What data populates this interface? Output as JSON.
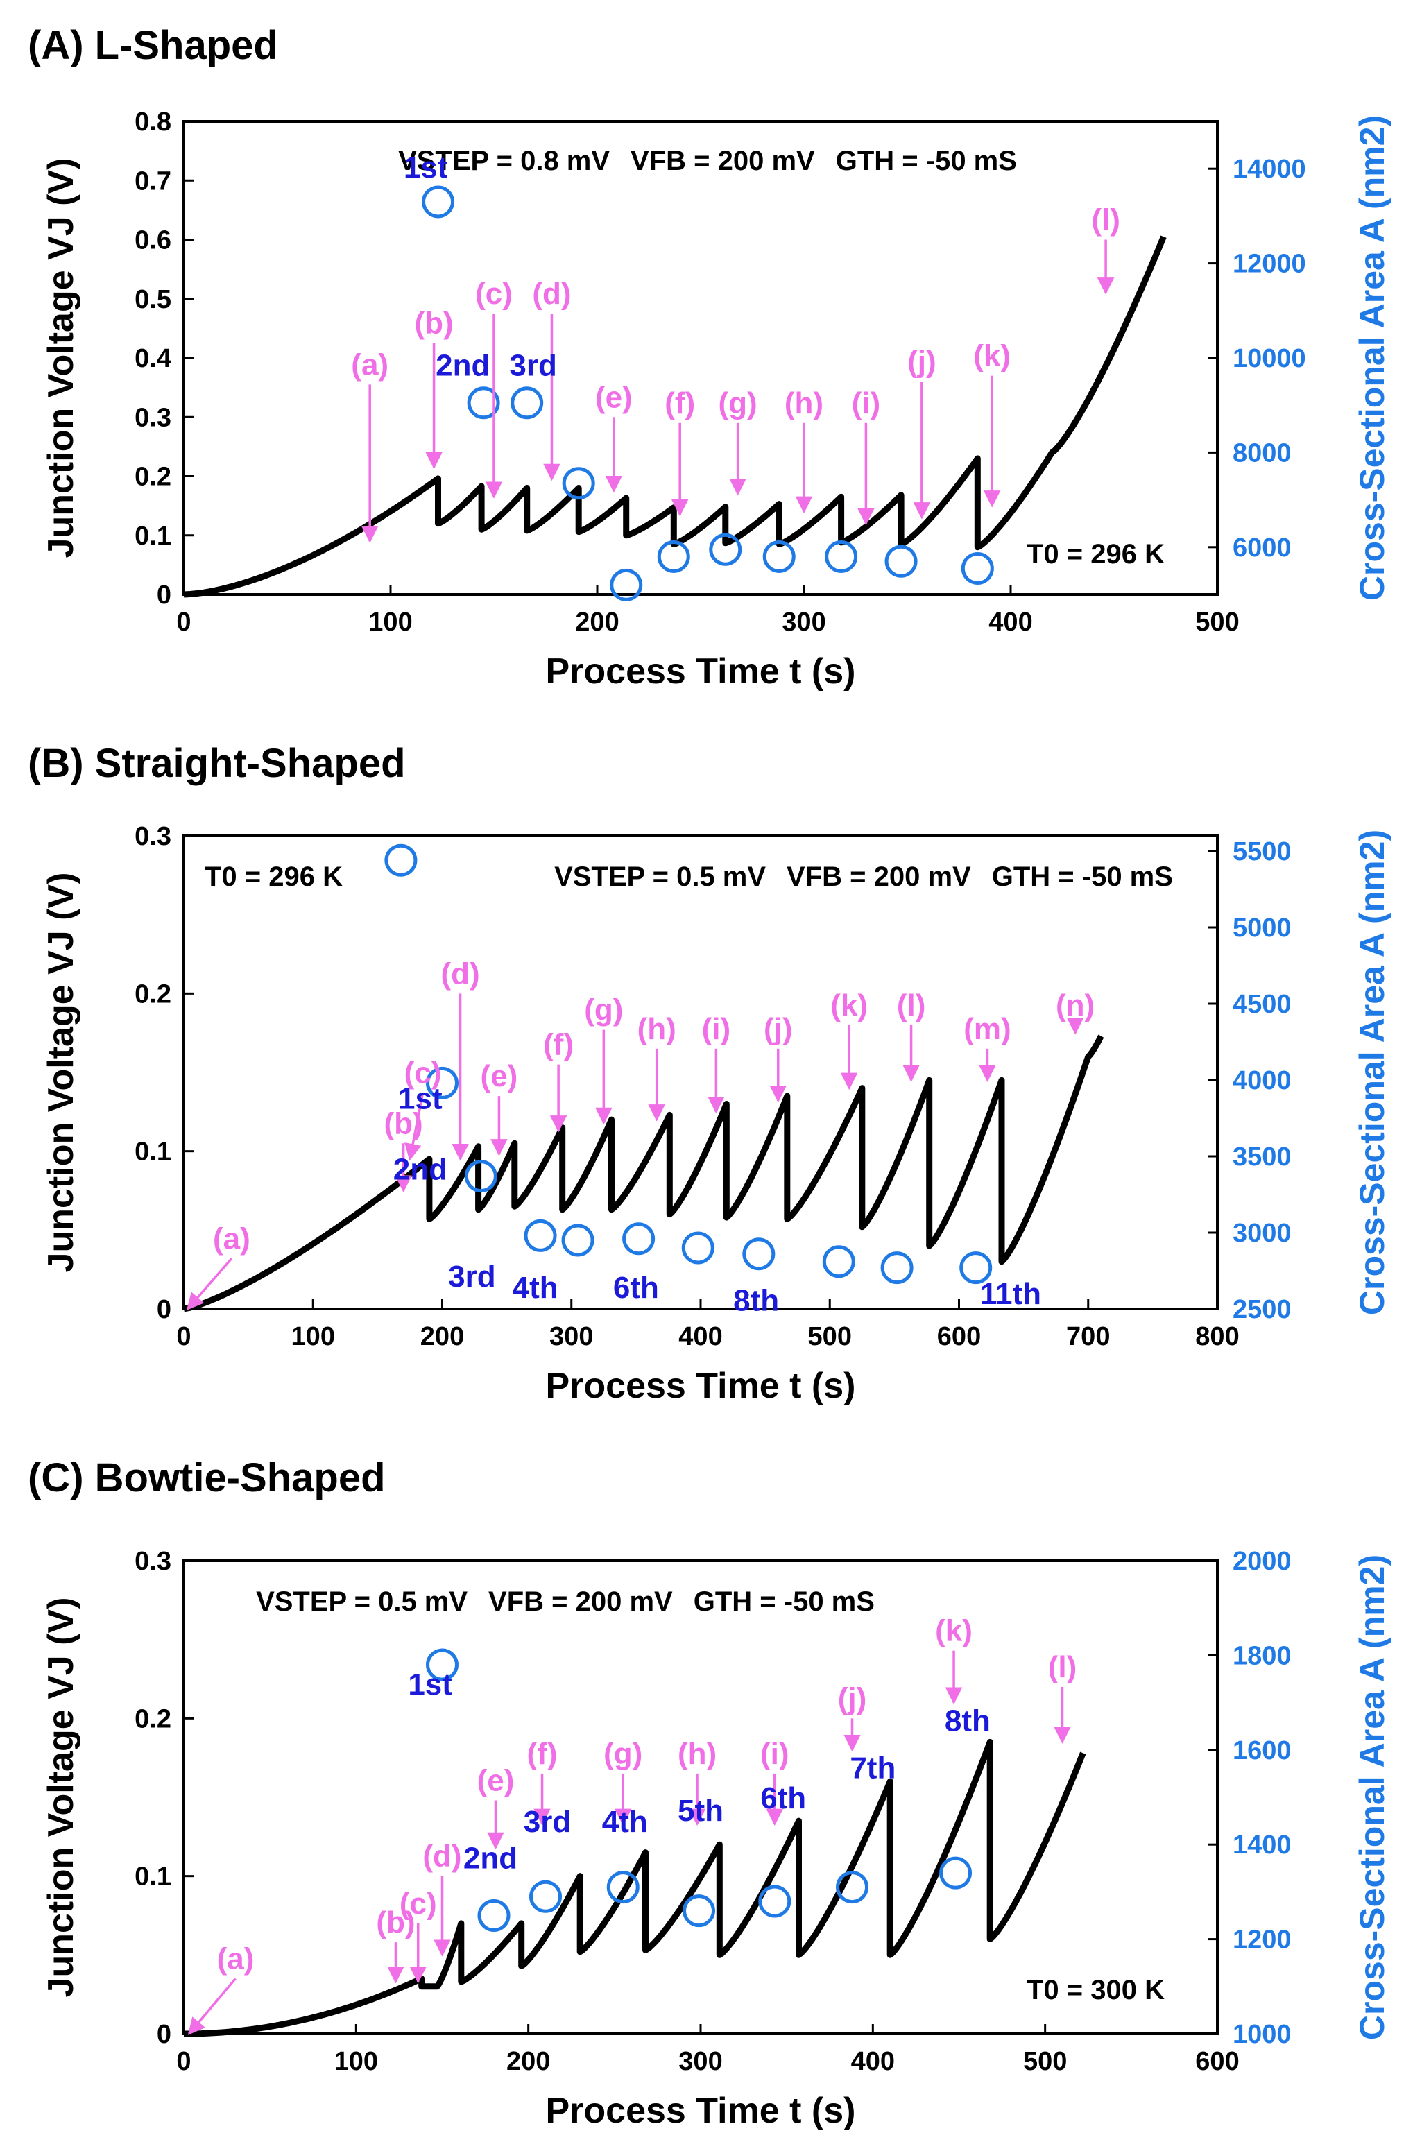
{
  "colors": {
    "curve": "#000000",
    "marker": "#1f7ae6",
    "arrow": "#f06ee6",
    "event": "#1a1ad8",
    "right_axis": "#1f7ae6"
  },
  "chart_data": [
    {
      "type": "line",
      "panel": "(A) L-Shaped",
      "xlabel": "Process Time t (s)",
      "ylabel": "Junction Voltage VJ (V)",
      "y2label": "Cross-Sectional Area A (nm2)",
      "xlim": [
        0,
        500
      ],
      "ylim": [
        0,
        0.8
      ],
      "y2lim": [
        5000,
        15000
      ],
      "xticks": [
        0,
        100,
        200,
        300,
        400,
        500
      ],
      "yticks": [
        0,
        0.1,
        0.2,
        0.3,
        0.4,
        0.5,
        0.6,
        0.7,
        0.8
      ],
      "y2ticks": [
        6000,
        8000,
        10000,
        12000,
        14000
      ],
      "params": {
        "vstep": "VSTEP = 0.8 mV",
        "vfb": "VFB = 200 mV",
        "gth": "GTH = -50 mS"
      },
      "temperature": "T0 = 296 K",
      "ramp_exp": 1.6,
      "segments": [
        {
          "t0": 0,
          "v0": 0.0,
          "t1": 123,
          "v1": 0.196
        },
        {
          "t0": 123,
          "v0": 0.12,
          "t1": 144,
          "v1": 0.183
        },
        {
          "t0": 144,
          "v0": 0.11,
          "t1": 166,
          "v1": 0.18
        },
        {
          "t0": 166,
          "v0": 0.108,
          "t1": 191,
          "v1": 0.18
        },
        {
          "t0": 191,
          "v0": 0.106,
          "t1": 214,
          "v1": 0.163
        },
        {
          "t0": 214,
          "v0": 0.1,
          "t1": 237,
          "v1": 0.147
        },
        {
          "t0": 237,
          "v0": 0.085,
          "t1": 262,
          "v1": 0.148
        },
        {
          "t0": 262,
          "v0": 0.087,
          "t1": 288,
          "v1": 0.153
        },
        {
          "t0": 288,
          "v0": 0.085,
          "t1": 318,
          "v1": 0.165
        },
        {
          "t0": 318,
          "v0": 0.088,
          "t1": 347,
          "v1": 0.168
        },
        {
          "t0": 347,
          "v0": 0.085,
          "t1": 384,
          "v1": 0.23
        },
        {
          "t0": 384,
          "v0": 0.08,
          "t1": 420,
          "v1": 0.24
        },
        {
          "t0": 420,
          "v0": 0.24,
          "t1": 474,
          "v1": 0.605
        }
      ],
      "markers": [
        {
          "t": 123,
          "a": 13300
        },
        {
          "t": 145,
          "a": 9050
        },
        {
          "t": 166,
          "a": 9050
        },
        {
          "t": 191,
          "a": 7350
        },
        {
          "t": 214,
          "a": 5200
        },
        {
          "t": 237,
          "a": 5800
        },
        {
          "t": 262,
          "a": 5950
        },
        {
          "t": 288,
          "a": 5800
        },
        {
          "t": 318,
          "a": 5800
        },
        {
          "t": 347,
          "a": 5700
        },
        {
          "t": 384,
          "a": 5550
        }
      ],
      "arrows": [
        {
          "label": "(a)",
          "t": 90,
          "v_top": 0.355,
          "v_end": 0.09
        },
        {
          "label": "(b)",
          "t": 121,
          "v_top": 0.425,
          "v_end": 0.215
        },
        {
          "label": "(c)",
          "t": 150,
          "v_top": 0.475,
          "v_end": 0.165
        },
        {
          "label": "(d)",
          "t": 178,
          "v_top": 0.475,
          "v_end": 0.195
        },
        {
          "label": "(e)",
          "t": 208,
          "v_top": 0.3,
          "v_end": 0.175
        },
        {
          "label": "(f)",
          "t": 240,
          "v_top": 0.29,
          "v_end": 0.135
        },
        {
          "label": "(g)",
          "t": 268,
          "v_top": 0.29,
          "v_end": 0.17
        },
        {
          "label": "(h)",
          "t": 300,
          "v_top": 0.29,
          "v_end": 0.14
        },
        {
          "label": "(i)",
          "t": 330,
          "v_top": 0.29,
          "v_end": 0.12
        },
        {
          "label": "(j)",
          "t": 357,
          "v_top": 0.36,
          "v_end": 0.13
        },
        {
          "label": "(k)",
          "t": 391,
          "v_top": 0.37,
          "v_end": 0.15
        },
        {
          "label": "(l)",
          "t": 446,
          "v_top": 0.6,
          "v_end": 0.51
        }
      ],
      "labels": [
        {
          "text": "1st",
          "t": 117,
          "v": 0.705
        },
        {
          "text": "2nd",
          "t": 135,
          "v": 0.37
        },
        {
          "text": "3rd",
          "t": 169,
          "v": 0.37
        }
      ]
    },
    {
      "type": "line",
      "panel": "(B) Straight-Shaped",
      "xlabel": "Process Time t (s)",
      "ylabel": "Junction Voltage VJ (V)",
      "y2label": "Cross-Sectional Area A (nm2)",
      "xlim": [
        0,
        800
      ],
      "ylim": [
        0,
        0.3
      ],
      "y2lim": [
        2500,
        5600
      ],
      "xticks": [
        0,
        100,
        200,
        300,
        400,
        500,
        600,
        700,
        800
      ],
      "yticks": [
        0,
        0.1,
        0.2,
        0.3
      ],
      "y2ticks": [
        2500,
        3000,
        3500,
        4000,
        4500,
        5000,
        5500
      ],
      "params": {
        "vstep": "VSTEP = 0.5 mV",
        "vfb": "VFB = 200 mV",
        "gth": "GTH = -50 mS"
      },
      "temperature": "T0 = 296 K",
      "ramp_exp": 1.3,
      "segments": [
        {
          "t0": 0,
          "v0": 0.0,
          "t1": 190,
          "v1": 0.095
        },
        {
          "t0": 190,
          "v0": 0.057,
          "t1": 228,
          "v1": 0.103
        },
        {
          "t0": 228,
          "v0": 0.063,
          "t1": 256,
          "v1": 0.105
        },
        {
          "t0": 256,
          "v0": 0.065,
          "t1": 293,
          "v1": 0.115
        },
        {
          "t0": 293,
          "v0": 0.063,
          "t1": 331,
          "v1": 0.12
        },
        {
          "t0": 331,
          "v0": 0.063,
          "t1": 376,
          "v1": 0.123
        },
        {
          "t0": 376,
          "v0": 0.06,
          "t1": 420,
          "v1": 0.13
        },
        {
          "t0": 420,
          "v0": 0.058,
          "t1": 467,
          "v1": 0.135
        },
        {
          "t0": 467,
          "v0": 0.057,
          "t1": 525,
          "v1": 0.14
        },
        {
          "t0": 525,
          "v0": 0.052,
          "t1": 577,
          "v1": 0.145
        },
        {
          "t0": 577,
          "v0": 0.04,
          "t1": 633,
          "v1": 0.145
        },
        {
          "t0": 633,
          "v0": 0.03,
          "t1": 700,
          "v1": 0.16
        },
        {
          "t0": 700,
          "v0": 0.16,
          "t1": 710,
          "v1": 0.173
        }
      ],
      "markers": [
        {
          "t": 168,
          "a": 5440
        },
        {
          "t": 200,
          "a": 3980
        },
        {
          "t": 230,
          "a": 3370
        },
        {
          "t": 276,
          "a": 2980
        },
        {
          "t": 305,
          "a": 2950
        },
        {
          "t": 352,
          "a": 2960
        },
        {
          "t": 398,
          "a": 2900
        },
        {
          "t": 445,
          "a": 2860
        },
        {
          "t": 507,
          "a": 2810
        },
        {
          "t": 552,
          "a": 2770
        },
        {
          "t": 613,
          "a": 2770
        }
      ],
      "arrows": [
        {
          "label": "(a)",
          "t": 3,
          "v_top": 0.032,
          "v_end": 0.0,
          "tx": 37
        },
        {
          "label": "(b)",
          "t": 170,
          "v_top": 0.105,
          "v_end": 0.075
        },
        {
          "label": "(c)",
          "t": 175,
          "v_top": 0.137,
          "v_end": 0.095,
          "tx": 185
        },
        {
          "label": "(d)",
          "t": 214,
          "v_top": 0.2,
          "v_end": 0.095
        },
        {
          "label": "(e)",
          "t": 244,
          "v_top": 0.135,
          "v_end": 0.098
        },
        {
          "label": "(f)",
          "t": 290,
          "v_top": 0.155,
          "v_end": 0.113
        },
        {
          "label": "(g)",
          "t": 325,
          "v_top": 0.177,
          "v_end": 0.118
        },
        {
          "label": "(h)",
          "t": 366,
          "v_top": 0.165,
          "v_end": 0.12
        },
        {
          "label": "(i)",
          "t": 412,
          "v_top": 0.165,
          "v_end": 0.125
        },
        {
          "label": "(j)",
          "t": 460,
          "v_top": 0.165,
          "v_end": 0.132
        },
        {
          "label": "(k)",
          "t": 515,
          "v_top": 0.18,
          "v_end": 0.14
        },
        {
          "label": "(l)",
          "t": 563,
          "v_top": 0.18,
          "v_end": 0.145
        },
        {
          "label": "(m)",
          "t": 622,
          "v_top": 0.165,
          "v_end": 0.145
        },
        {
          "label": "(n)",
          "t": 690,
          "v_top": 0.18,
          "v_end": 0.175
        }
      ],
      "labels": [
        {
          "text": "1st",
          "t": 183,
          "v": 0.127
        },
        {
          "text": "2nd",
          "t": 183,
          "v": 0.082
        },
        {
          "text": "3rd",
          "t": 223,
          "v": 0.014
        },
        {
          "text": "4th",
          "t": 272,
          "v": 0.007
        },
        {
          "text": "6th",
          "t": 350,
          "v": 0.007
        },
        {
          "text": "8th",
          "t": 443,
          "v": -0.001
        },
        {
          "text": "11th",
          "t": 640,
          "v": 0.003
        }
      ]
    },
    {
      "type": "line",
      "panel": "(C) Bowtie-Shaped",
      "xlabel": "Process Time t (s)",
      "ylabel": "Junction Voltage VJ (V)",
      "y2label": "Cross-Sectional Area A (nm2)",
      "xlim": [
        0,
        600
      ],
      "ylim": [
        0,
        0.3
      ],
      "y2lim": [
        1000,
        2000
      ],
      "xticks": [
        0,
        100,
        200,
        300,
        400,
        500,
        600
      ],
      "yticks": [
        0,
        0.1,
        0.2,
        0.3
      ],
      "y2ticks": [
        1000,
        1200,
        1400,
        1600,
        1800,
        2000
      ],
      "params": {
        "vstep": "VSTEP = 0.5 mV",
        "vfb": "VFB = 200 mV",
        "gth": "GTH = -50 mS"
      },
      "temperature": "T0 = 300 K",
      "ramp_exp": 2.0,
      "segments": [
        {
          "t0": 0,
          "v0": 0.0,
          "t1": 138,
          "v1": 0.035
        },
        {
          "t0": 138,
          "v0": 0.03,
          "t1": 147,
          "v1": 0.03
        },
        {
          "t0": 147,
          "v0": 0.03,
          "t1": 161,
          "v1": 0.07
        },
        {
          "t0": 161,
          "v0": 0.033,
          "t1": 196,
          "v1": 0.07
        },
        {
          "t0": 196,
          "v0": 0.043,
          "t1": 230,
          "v1": 0.1
        },
        {
          "t0": 230,
          "v0": 0.052,
          "t1": 268,
          "v1": 0.115
        },
        {
          "t0": 268,
          "v0": 0.053,
          "t1": 311,
          "v1": 0.12
        },
        {
          "t0": 311,
          "v0": 0.05,
          "t1": 357,
          "v1": 0.135
        },
        {
          "t0": 357,
          "v0": 0.05,
          "t1": 410,
          "v1": 0.16
        },
        {
          "t0": 410,
          "v0": 0.05,
          "t1": 468,
          "v1": 0.185
        },
        {
          "t0": 468,
          "v0": 0.06,
          "t1": 522,
          "v1": 0.178
        }
      ],
      "markers": [
        {
          "t": 150,
          "a": 1780
        },
        {
          "t": 180,
          "a": 1250
        },
        {
          "t": 210,
          "a": 1290
        },
        {
          "t": 255,
          "a": 1310
        },
        {
          "t": 299,
          "a": 1260
        },
        {
          "t": 343,
          "a": 1280
        },
        {
          "t": 388,
          "a": 1310
        },
        {
          "t": 448,
          "a": 1340
        }
      ],
      "arrows": [
        {
          "label": "(a)",
          "t": 3,
          "v_top": 0.035,
          "v_end": 0.0,
          "tx": 30
        },
        {
          "label": "(b)",
          "t": 123,
          "v_top": 0.058,
          "v_end": 0.033
        },
        {
          "label": "(c)",
          "t": 136,
          "v_top": 0.07,
          "v_end": 0.033
        },
        {
          "label": "(d)",
          "t": 150,
          "v_top": 0.1,
          "v_end": 0.05
        },
        {
          "label": "(e)",
          "t": 181,
          "v_top": 0.148,
          "v_end": 0.118
        },
        {
          "label": "(f)",
          "t": 208,
          "v_top": 0.165,
          "v_end": 0.133
        },
        {
          "label": "(g)",
          "t": 255,
          "v_top": 0.165,
          "v_end": 0.133
        },
        {
          "label": "(h)",
          "t": 298,
          "v_top": 0.165,
          "v_end": 0.133
        },
        {
          "label": "(i)",
          "t": 343,
          "v_top": 0.165,
          "v_end": 0.133
        },
        {
          "label": "(j)",
          "t": 388,
          "v_top": 0.2,
          "v_end": 0.18
        },
        {
          "label": "(k)",
          "t": 447,
          "v_top": 0.243,
          "v_end": 0.21
        },
        {
          "label": "(l)",
          "t": 510,
          "v_top": 0.22,
          "v_end": 0.185
        }
      ],
      "labels": [
        {
          "text": "1st",
          "t": 143,
          "v": 0.215
        },
        {
          "text": "2nd",
          "t": 178,
          "v": 0.105
        },
        {
          "text": "3rd",
          "t": 211,
          "v": 0.128
        },
        {
          "text": "4th",
          "t": 256,
          "v": 0.128
        },
        {
          "text": "5th",
          "t": 300,
          "v": 0.135
        },
        {
          "text": "6th",
          "t": 348,
          "v": 0.143
        },
        {
          "text": "7th",
          "t": 400,
          "v": 0.162
        },
        {
          "text": "8th",
          "t": 455,
          "v": 0.192
        }
      ]
    }
  ]
}
